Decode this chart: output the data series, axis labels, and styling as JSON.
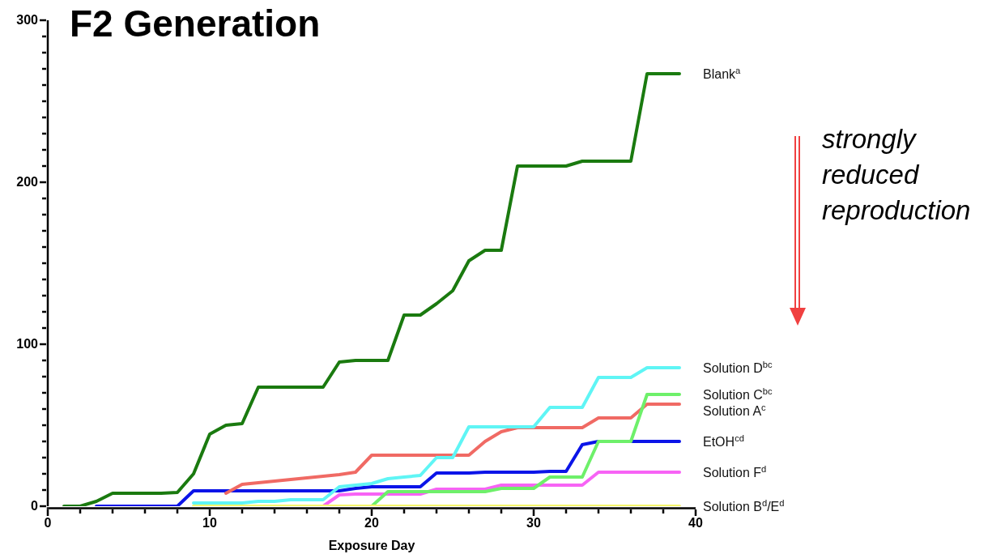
{
  "chart_data": {
    "type": "line",
    "title": "F2 Generation",
    "xlabel": "Exposure Day",
    "x": [
      1,
      2,
      3,
      4,
      5,
      6,
      7,
      8,
      9,
      10,
      11,
      12,
      13,
      14,
      15,
      16,
      17,
      18,
      19,
      20,
      21,
      22,
      23,
      24,
      25,
      26,
      27,
      28,
      29,
      30,
      31,
      32,
      33,
      34,
      35,
      36,
      37,
      38,
      39
    ],
    "series": [
      {
        "name": "Blank$^{a}$",
        "color": "#1a7a0f",
        "values": [
          0,
          0,
          3,
          8,
          8,
          8,
          8,
          8.5,
          20,
          44.5,
          50,
          51,
          73.5,
          73.5,
          73.5,
          73.5,
          73.5,
          89,
          90,
          90,
          90,
          118,
          118,
          125,
          133,
          151.5,
          158,
          158,
          210,
          210,
          210,
          210,
          213,
          213,
          213,
          213,
          267,
          267,
          267
        ]
      },
      {
        "name": "Solution D$^{bc}$",
        "color": "#5ff5f5",
        "values": [
          null,
          null,
          null,
          null,
          null,
          null,
          null,
          null,
          2,
          2,
          2,
          2,
          3,
          3,
          4,
          4,
          4,
          12,
          13,
          14,
          17,
          18,
          19,
          30,
          30,
          49,
          49,
          49,
          49,
          49,
          61,
          61,
          61,
          79.5,
          79.5,
          79.5,
          85.5,
          85.5,
          85.5
        ]
      },
      {
        "name": "Solution C$^{bc}$",
        "color": "#6ef06a",
        "values": [
          null,
          null,
          null,
          null,
          null,
          null,
          null,
          null,
          null,
          null,
          null,
          null,
          null,
          null,
          null,
          null,
          null,
          null,
          null,
          0,
          9,
          9,
          9,
          9,
          9,
          9,
          9,
          11,
          11,
          11,
          18,
          18,
          18,
          40,
          40,
          40,
          69,
          69,
          69
        ]
      },
      {
        "name": "Solution A$^{c}$",
        "color": "#f06a64",
        "values": [
          null,
          null,
          null,
          null,
          null,
          null,
          null,
          null,
          null,
          null,
          8,
          13.5,
          14.5,
          15.5,
          16.5,
          17.5,
          18.5,
          19.5,
          21,
          31.5,
          31.5,
          31.5,
          31.5,
          31.5,
          31.5,
          31.5,
          40,
          46,
          48.5,
          48.5,
          48.5,
          48.5,
          48.5,
          54.5,
          54.5,
          54.5,
          63,
          63,
          63
        ]
      },
      {
        "name": "EtOH$^{cd}$",
        "color": "#0b14e8",
        "values": [
          null,
          null,
          0,
          0,
          0,
          0,
          0,
          0,
          9.5,
          9.5,
          9.5,
          9.5,
          9.5,
          9.5,
          9.5,
          9.5,
          9.5,
          9.5,
          11,
          12,
          12,
          12,
          12,
          20.5,
          20.5,
          20.5,
          21,
          21,
          21,
          21,
          21.5,
          21.5,
          38,
          40,
          40,
          40,
          40,
          40,
          40
        ]
      },
      {
        "name": "Solution F$^{d}$",
        "color": "#f763f5",
        "values": [
          null,
          null,
          null,
          null,
          null,
          null,
          null,
          null,
          null,
          null,
          null,
          null,
          null,
          null,
          null,
          null,
          0,
          7,
          7.5,
          7.5,
          7.5,
          7.5,
          7.5,
          10.5,
          10.5,
          10.5,
          10.5,
          13,
          13,
          13,
          13,
          13,
          13,
          21,
          21,
          21,
          21,
          21,
          21
        ]
      },
      {
        "name": "Solution B$^{d}$/E$^{d}$",
        "color": "#f5f56a",
        "values": [
          null,
          null,
          null,
          null,
          null,
          null,
          null,
          null,
          0,
          0,
          0,
          0,
          0,
          0,
          0,
          0,
          0,
          0,
          0,
          0,
          0,
          0,
          0,
          0,
          0,
          0,
          0,
          0,
          0,
          0,
          0,
          0,
          0,
          0,
          0,
          0,
          0,
          0,
          0
        ]
      }
    ],
    "xlim": [
      0,
      40
    ],
    "xticks": [
      0,
      {
        "value": 2,
        "label": null
      },
      {
        "value": 4,
        "label": null
      },
      {
        "value": 6,
        "label": null
      },
      {
        "value": 8,
        "label": null
      },
      10,
      {
        "value": 12,
        "label": null
      },
      {
        "value": 14,
        "label": null
      },
      {
        "value": 16,
        "label": null
      },
      {
        "value": 18,
        "label": null
      },
      20,
      {
        "value": 22,
        "label": null
      },
      {
        "value": 24,
        "label": null
      },
      {
        "value": 26,
        "label": null
      },
      {
        "value": 28,
        "label": null
      },
      30,
      {
        "value": 32,
        "label": null
      },
      {
        "value": 34,
        "label": null
      },
      {
        "value": 36,
        "label": null
      },
      {
        "value": 38,
        "label": null
      },
      40
    ],
    "ylim": [
      0,
      300
    ],
    "yticks": [
      0,
      {
        "value": 10,
        "label": null
      },
      {
        "value": 20,
        "label": null
      },
      {
        "value": 30,
        "label": null
      },
      {
        "value": 40,
        "label": null
      },
      {
        "value": 50,
        "label": null
      },
      {
        "value": 60,
        "label": null
      },
      {
        "value": 70,
        "label": null
      },
      {
        "value": 80,
        "label": null
      },
      {
        "value": 90,
        "label": null
      },
      100,
      {
        "value": 110,
        "label": null
      },
      {
        "value": 120,
        "label": null
      },
      {
        "value": 130,
        "label": null
      },
      {
        "value": 140,
        "label": null
      },
      {
        "value": 150,
        "label": null
      },
      {
        "value": 160,
        "label": null
      },
      {
        "value": 170,
        "label": null
      },
      {
        "value": 180,
        "label": null
      },
      {
        "value": 190,
        "label": null
      },
      200,
      {
        "value": 210,
        "label": null
      },
      {
        "value": 220,
        "label": null
      },
      {
        "value": 230,
        "label": null
      },
      {
        "value": 240,
        "label": null
      },
      {
        "value": 250,
        "label": null
      },
      {
        "value": 260,
        "label": null
      },
      {
        "value": 270,
        "label": null
      },
      {
        "value": 280,
        "label": null
      },
      {
        "value": 290,
        "label": null
      },
      300
    ],
    "marker": "none",
    "line_style": "solid",
    "annotations": [
      "strongly reduced reproduction"
    ]
  }
}
